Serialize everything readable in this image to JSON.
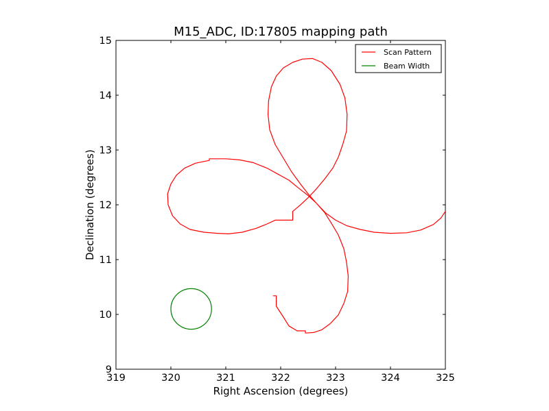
{
  "chart_data": {
    "type": "line",
    "title": "M15_ADC, ID:17805 mapping path",
    "xlabel": "Right Ascension (degrees)",
    "ylabel": "Declination (degrees)",
    "xlim": [
      319,
      325
    ],
    "ylim": [
      9,
      15
    ],
    "xticks": [
      "319",
      "320",
      "321",
      "322",
      "323",
      "324",
      "325"
    ],
    "yticks": [
      "9",
      "10",
      "11",
      "12",
      "13",
      "14",
      "15"
    ],
    "grid": false,
    "legend_position": "top-right",
    "series": [
      {
        "name": "Scan Pattern",
        "color": "#ff0000",
        "points": [
          [
            321.86,
            10.34
          ],
          [
            321.92,
            10.34
          ],
          [
            321.92,
            10.15
          ],
          [
            322.05,
            9.95
          ],
          [
            322.15,
            9.79
          ],
          [
            322.3,
            9.7
          ],
          [
            322.45,
            9.7
          ],
          [
            322.45,
            9.66
          ],
          [
            322.6,
            9.67
          ],
          [
            322.75,
            9.72
          ],
          [
            322.9,
            9.83
          ],
          [
            323.05,
            9.99
          ],
          [
            323.15,
            10.2
          ],
          [
            323.22,
            10.42
          ],
          [
            323.23,
            10.7
          ],
          [
            323.2,
            10.95
          ],
          [
            323.15,
            11.2
          ],
          [
            323.05,
            11.45
          ],
          [
            322.92,
            11.67
          ],
          [
            322.8,
            11.86
          ],
          [
            322.65,
            12.03
          ],
          [
            322.5,
            12.17
          ],
          [
            322.32,
            12.31
          ],
          [
            322.15,
            12.45
          ],
          [
            321.95,
            12.56
          ],
          [
            321.75,
            12.67
          ],
          [
            321.5,
            12.77
          ],
          [
            321.25,
            12.82
          ],
          [
            321.0,
            12.84
          ],
          [
            320.7,
            12.84
          ],
          [
            320.7,
            12.81
          ],
          [
            320.45,
            12.76
          ],
          [
            320.25,
            12.67
          ],
          [
            320.1,
            12.54
          ],
          [
            320.0,
            12.38
          ],
          [
            319.94,
            12.2
          ],
          [
            319.95,
            12.0
          ],
          [
            320.03,
            11.8
          ],
          [
            320.17,
            11.65
          ],
          [
            320.35,
            11.55
          ],
          [
            320.6,
            11.5
          ],
          [
            320.85,
            11.48
          ],
          [
            321.05,
            11.47
          ],
          [
            321.3,
            11.5
          ],
          [
            321.55,
            11.57
          ],
          [
            321.75,
            11.65
          ],
          [
            321.9,
            11.72
          ],
          [
            322.22,
            11.72
          ],
          [
            322.22,
            11.88
          ],
          [
            322.35,
            11.99
          ],
          [
            322.5,
            12.13
          ],
          [
            322.65,
            12.29
          ],
          [
            322.8,
            12.47
          ],
          [
            322.95,
            12.67
          ],
          [
            323.05,
            12.87
          ],
          [
            323.13,
            13.1
          ],
          [
            323.2,
            13.35
          ],
          [
            323.21,
            13.65
          ],
          [
            323.17,
            13.95
          ],
          [
            323.08,
            14.2
          ],
          [
            322.92,
            14.45
          ],
          [
            322.75,
            14.6
          ],
          [
            322.58,
            14.67
          ],
          [
            322.4,
            14.66
          ],
          [
            322.22,
            14.6
          ],
          [
            322.05,
            14.5
          ],
          [
            321.92,
            14.35
          ],
          [
            321.83,
            14.15
          ],
          [
            321.78,
            13.9
          ],
          [
            321.77,
            13.65
          ],
          [
            321.8,
            13.37
          ],
          [
            321.9,
            13.1
          ],
          [
            322.05,
            12.85
          ],
          [
            322.2,
            12.6
          ],
          [
            322.36,
            12.38
          ],
          [
            322.5,
            12.2
          ],
          [
            322.65,
            12.03
          ],
          [
            322.82,
            11.85
          ],
          [
            323.0,
            11.72
          ],
          [
            323.2,
            11.62
          ],
          [
            323.45,
            11.55
          ],
          [
            323.7,
            11.5
          ],
          [
            324.0,
            11.48
          ],
          [
            324.3,
            11.49
          ],
          [
            324.55,
            11.54
          ],
          [
            324.78,
            11.64
          ],
          [
            324.92,
            11.76
          ],
          [
            325.0,
            11.88
          ]
        ]
      },
      {
        "name": "Beam Width",
        "color": "#008000",
        "shape": "circle",
        "center": [
          320.37,
          10.1
        ],
        "radius": 0.37
      }
    ]
  }
}
